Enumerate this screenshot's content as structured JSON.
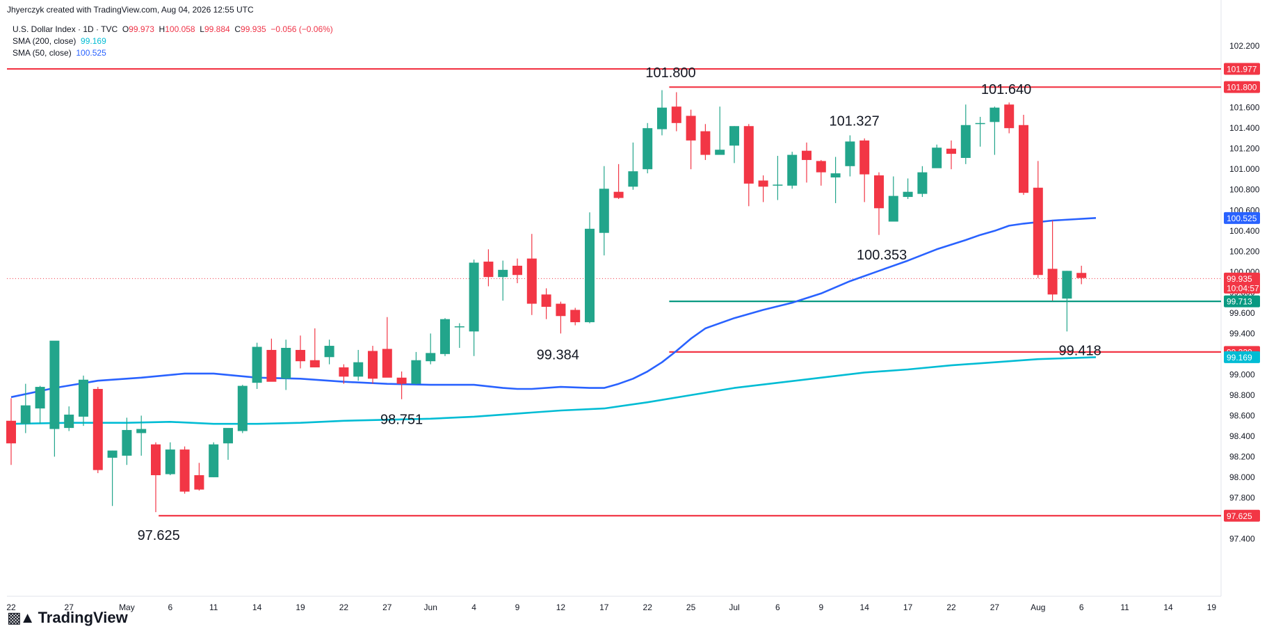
{
  "header": {
    "credit": "Jhyerczyk created with TradingView.com, Aug 04, 2026 12:55 UTC"
  },
  "legend": {
    "symbol": "U.S. Dollar Index · 1D · TVC",
    "o_label": "O",
    "o_value": "99.973",
    "h_label": "H",
    "h_value": "100.058",
    "l_label": "L",
    "l_value": "99.884",
    "c_label": "C",
    "c_value": "99.935",
    "change": "−0.056 (−0.06%)",
    "sma200_label": "SMA (200, close)",
    "sma200_value": "99.169",
    "sma50_label": "SMA (50, close)",
    "sma50_value": "100.525"
  },
  "brand": {
    "name": "TradingView",
    "logo_icon": "tradingview-logo-icon"
  },
  "colors": {
    "up": "#22a58b",
    "down": "#f23645",
    "sma50": "#2962ff",
    "sma200": "#00bcd4",
    "level_red": "#f23645",
    "level_teal": "#089981"
  },
  "chart_data": {
    "type": "candlestick",
    "ylim": [
      97.2,
      102.35
    ],
    "y_ticks": [
      "97.400",
      "97.600",
      "97.800",
      "98.000",
      "98.200",
      "98.400",
      "98.600",
      "98.800",
      "99.000",
      "99.200",
      "99.400",
      "99.600",
      "99.800",
      "100.000",
      "100.200",
      "100.400",
      "100.600",
      "100.800",
      "101.000",
      "101.200",
      "101.400",
      "101.600",
      "101.800",
      "102.000",
      "102.200"
    ],
    "x_ticks": [
      {
        "i": 0,
        "label": "22"
      },
      {
        "i": 4,
        "label": "27"
      },
      {
        "i": 8,
        "label": "May"
      },
      {
        "i": 11,
        "label": "6"
      },
      {
        "i": 14,
        "label": "11"
      },
      {
        "i": 17,
        "label": "14"
      },
      {
        "i": 20,
        "label": "19"
      },
      {
        "i": 23,
        "label": "22"
      },
      {
        "i": 26,
        "label": "27"
      },
      {
        "i": 29,
        "label": "Jun"
      },
      {
        "i": 32,
        "label": "4"
      },
      {
        "i": 35,
        "label": "9"
      },
      {
        "i": 38,
        "label": "12"
      },
      {
        "i": 41,
        "label": "17"
      },
      {
        "i": 44,
        "label": "22"
      },
      {
        "i": 47,
        "label": "25"
      },
      {
        "i": 50,
        "label": "Jul"
      },
      {
        "i": 53,
        "label": "6"
      },
      {
        "i": 56,
        "label": "9"
      },
      {
        "i": 59,
        "label": "14"
      },
      {
        "i": 62,
        "label": "17"
      },
      {
        "i": 65,
        "label": "22"
      },
      {
        "i": 68,
        "label": "27"
      },
      {
        "i": 71,
        "label": "Aug"
      },
      {
        "i": 74,
        "label": "6"
      },
      {
        "i": 77,
        "label": "11"
      },
      {
        "i": 80,
        "label": "14"
      },
      {
        "i": 83,
        "label": "19"
      }
    ],
    "candles": [
      [
        98.55,
        98.77,
        98.12,
        98.33
      ],
      [
        98.52,
        98.91,
        98.43,
        98.7
      ],
      [
        98.67,
        98.89,
        98.52,
        98.88
      ],
      [
        98.47,
        99.32,
        98.2,
        99.33
      ],
      [
        98.48,
        98.69,
        98.45,
        98.61
      ],
      [
        98.59,
        98.99,
        98.5,
        98.95
      ],
      [
        98.86,
        98.88,
        98.04,
        98.07
      ],
      [
        98.19,
        98.26,
        97.72,
        98.26
      ],
      [
        98.21,
        98.58,
        98.12,
        98.46
      ],
      [
        98.43,
        98.6,
        98.21,
        98.47
      ],
      [
        98.32,
        98.34,
        97.66,
        98.02
      ],
      [
        98.03,
        98.34,
        98.02,
        98.27
      ],
      [
        98.27,
        98.3,
        97.84,
        97.86
      ],
      [
        98.02,
        98.14,
        97.87,
        97.88
      ],
      [
        98.0,
        98.34,
        98.0,
        98.32
      ],
      [
        98.33,
        98.47,
        98.17,
        98.48
      ],
      [
        98.45,
        98.9,
        98.43,
        98.89
      ],
      [
        98.92,
        99.31,
        98.86,
        99.27
      ],
      [
        99.24,
        99.35,
        98.96,
        98.93
      ],
      [
        98.96,
        99.34,
        98.85,
        99.26
      ],
      [
        99.24,
        99.38,
        99.06,
        99.13
      ],
      [
        99.14,
        99.45,
        99.07,
        99.07
      ],
      [
        99.17,
        99.34,
        99.1,
        99.28
      ],
      [
        99.07,
        99.1,
        98.91,
        98.98
      ],
      [
        98.98,
        99.24,
        98.94,
        99.12
      ],
      [
        99.23,
        99.28,
        98.91,
        98.96
      ],
      [
        99.25,
        99.56,
        98.98,
        98.97
      ],
      [
        98.97,
        99.03,
        98.76,
        98.91
      ],
      [
        98.91,
        99.22,
        98.9,
        99.14
      ],
      [
        99.13,
        99.4,
        99.1,
        99.21
      ],
      [
        99.2,
        99.55,
        99.18,
        99.54
      ],
      [
        99.47,
        99.5,
        99.26,
        99.47
      ],
      [
        99.42,
        100.12,
        99.18,
        100.09
      ],
      [
        100.1,
        100.22,
        99.86,
        99.95
      ],
      [
        99.95,
        100.11,
        99.72,
        100.02
      ],
      [
        100.06,
        100.13,
        99.89,
        99.97
      ],
      [
        100.13,
        100.37,
        99.58,
        99.69
      ],
      [
        99.78,
        99.84,
        99.54,
        99.66
      ],
      [
        99.69,
        99.71,
        99.4,
        99.57
      ],
      [
        99.63,
        99.65,
        99.48,
        99.51
      ],
      [
        99.51,
        100.58,
        99.5,
        100.42
      ],
      [
        100.38,
        101.03,
        100.16,
        100.81
      ],
      [
        100.78,
        101.05,
        100.71,
        100.72
      ],
      [
        100.83,
        101.26,
        100.8,
        100.98
      ],
      [
        101.0,
        101.45,
        100.96,
        101.4
      ],
      [
        101.39,
        101.77,
        101.33,
        101.6
      ],
      [
        101.61,
        101.75,
        101.37,
        101.45
      ],
      [
        101.52,
        101.58,
        101.0,
        101.28
      ],
      [
        101.37,
        101.44,
        101.09,
        101.14
      ],
      [
        101.14,
        101.61,
        101.17,
        101.19
      ],
      [
        101.23,
        101.42,
        101.06,
        101.42
      ],
      [
        101.42,
        101.44,
        100.64,
        100.86
      ],
      [
        100.89,
        100.94,
        100.68,
        100.83
      ],
      [
        100.84,
        101.13,
        100.7,
        100.85
      ],
      [
        100.84,
        101.17,
        100.81,
        101.14
      ],
      [
        101.18,
        101.26,
        100.87,
        101.09
      ],
      [
        101.08,
        101.09,
        100.84,
        100.97
      ],
      [
        100.92,
        101.12,
        100.67,
        100.96
      ],
      [
        101.03,
        101.33,
        100.93,
        101.27
      ],
      [
        101.28,
        101.3,
        100.68,
        100.95
      ],
      [
        100.94,
        100.97,
        100.36,
        100.62
      ],
      [
        100.49,
        100.93,
        100.52,
        100.74
      ],
      [
        100.73,
        100.91,
        100.71,
        100.78
      ],
      [
        100.76,
        101.03,
        100.73,
        100.97
      ],
      [
        101.01,
        101.24,
        101.02,
        101.21
      ],
      [
        101.2,
        101.28,
        101.0,
        101.15
      ],
      [
        101.11,
        101.63,
        101.05,
        101.43
      ],
      [
        101.44,
        101.51,
        101.22,
        101.45
      ],
      [
        101.46,
        101.61,
        101.14,
        101.6
      ],
      [
        101.63,
        101.65,
        101.35,
        101.4
      ],
      [
        101.43,
        101.53,
        100.75,
        100.77
      ],
      [
        100.82,
        101.08,
        99.94,
        99.97
      ],
      [
        100.03,
        100.5,
        99.72,
        99.78
      ],
      [
        99.74,
        100.01,
        99.42,
        100.01
      ],
      [
        99.99,
        100.06,
        99.88,
        99.94
      ]
    ],
    "sma50": [
      [
        0,
        98.78
      ],
      [
        3,
        98.87
      ],
      [
        6,
        98.94
      ],
      [
        9,
        98.97
      ],
      [
        12,
        99.01
      ],
      [
        14,
        99.01
      ],
      [
        17,
        98.97
      ],
      [
        20,
        98.96
      ],
      [
        23,
        98.93
      ],
      [
        26,
        98.91
      ],
      [
        29,
        98.9
      ],
      [
        32,
        98.9
      ],
      [
        34,
        98.87
      ],
      [
        35,
        98.86
      ],
      [
        36,
        98.86
      ],
      [
        38,
        98.88
      ],
      [
        40,
        98.87
      ],
      [
        41,
        98.87
      ],
      [
        42,
        98.91
      ],
      [
        43,
        98.96
      ],
      [
        44,
        99.03
      ],
      [
        45,
        99.12
      ],
      [
        46,
        99.23
      ],
      [
        47,
        99.35
      ],
      [
        48,
        99.45
      ],
      [
        50,
        99.55
      ],
      [
        52,
        99.63
      ],
      [
        54,
        99.7
      ],
      [
        56,
        99.79
      ],
      [
        58,
        99.91
      ],
      [
        60,
        100.01
      ],
      [
        62,
        100.11
      ],
      [
        64,
        100.22
      ],
      [
        66,
        100.31
      ],
      [
        67,
        100.36
      ],
      [
        68,
        100.4
      ],
      [
        69,
        100.45
      ],
      [
        70,
        100.47
      ],
      [
        72,
        100.5
      ],
      [
        75,
        100.525
      ]
    ],
    "sma200": [
      [
        0,
        98.52
      ],
      [
        4,
        98.53
      ],
      [
        8,
        98.53
      ],
      [
        11,
        98.54
      ],
      [
        14,
        98.52
      ],
      [
        17,
        98.52
      ],
      [
        20,
        98.53
      ],
      [
        23,
        98.55
      ],
      [
        26,
        98.56
      ],
      [
        29,
        98.57
      ],
      [
        32,
        98.59
      ],
      [
        35,
        98.62
      ],
      [
        38,
        98.65
      ],
      [
        41,
        98.67
      ],
      [
        44,
        98.73
      ],
      [
        47,
        98.8
      ],
      [
        50,
        98.87
      ],
      [
        53,
        98.92
      ],
      [
        56,
        98.97
      ],
      [
        59,
        99.02
      ],
      [
        62,
        99.05
      ],
      [
        65,
        99.09
      ],
      [
        68,
        99.12
      ],
      [
        71,
        99.15
      ],
      [
        75,
        99.169
      ]
    ],
    "levels": [
      {
        "value": 101.977,
        "label": "101.977",
        "color": "#f23645",
        "start": 0
      },
      {
        "value": 101.8,
        "label": "101.800",
        "color": "#f23645",
        "start": 45.5
      },
      {
        "value": 99.713,
        "label": "99.713",
        "color": "#089981",
        "start": 45.5
      },
      {
        "value": 99.22,
        "label": "99.220",
        "color": "#f23645",
        "start": 45.5
      },
      {
        "value": 97.625,
        "label": "97.625",
        "color": "#f23645",
        "start": 10.2
      }
    ],
    "axis_tags": [
      {
        "value": 101.977,
        "label": "101.977",
        "color": "#f23645"
      },
      {
        "value": 101.8,
        "label": "101.800",
        "color": "#f23645"
      },
      {
        "value": 100.525,
        "label": "100.525",
        "color": "#2962ff"
      },
      {
        "value": 99.935,
        "label": "99.935",
        "label2": "10:04:57",
        "color": "#f23645"
      },
      {
        "value": 99.713,
        "label": "99.713",
        "color": "#089981"
      },
      {
        "value": 99.22,
        "label": "99.220",
        "color": "#f23645"
      },
      {
        "value": 99.169,
        "label": "99.169",
        "color": "#00bcd4"
      },
      {
        "value": 97.625,
        "label": "97.625",
        "color": "#f23645"
      }
    ],
    "annotations": [
      {
        "i": 45.6,
        "value": 101.8,
        "label": "101.800",
        "pos": "above"
      },
      {
        "i": 68.8,
        "value": 101.64,
        "label": "101.640",
        "pos": "above"
      },
      {
        "i": 58.3,
        "value": 101.33,
        "label": "101.327",
        "pos": "above"
      },
      {
        "i": 60.2,
        "value": 100.35,
        "label": "100.353",
        "pos": "below"
      },
      {
        "i": 37.8,
        "value": 99.38,
        "label": "99.384",
        "pos": "below"
      },
      {
        "i": 73.9,
        "value": 99.42,
        "label": "99.418",
        "pos": "below"
      },
      {
        "i": 27.0,
        "value": 98.75,
        "label": "98.751",
        "pos": "below"
      },
      {
        "i": 10.2,
        "value": 97.62,
        "label": "97.625",
        "pos": "below"
      }
    ],
    "last_price": 99.935
  }
}
